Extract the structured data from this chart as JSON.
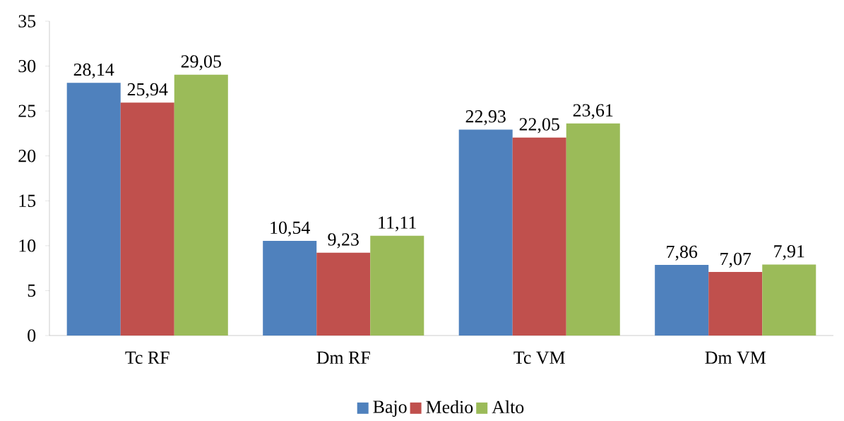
{
  "chart_data": {
    "type": "bar",
    "categories": [
      "Tc RF",
      "Dm RF",
      "Tc VM",
      "Dm VM"
    ],
    "series": [
      {
        "name": "Bajo",
        "color": "#4f81bd",
        "values": [
          28.14,
          10.54,
          22.93,
          7.86
        ],
        "value_labels": [
          "28,14",
          "10,54",
          "22,93",
          "7,86"
        ]
      },
      {
        "name": "Medio",
        "color": "#c0504d",
        "values": [
          25.94,
          9.23,
          22.05,
          7.07
        ],
        "value_labels": [
          "25,94",
          "9,23",
          "22,05",
          "7,07"
        ]
      },
      {
        "name": "Alto",
        "color": "#9bbb59",
        "values": [
          29.05,
          11.11,
          23.61,
          7.91
        ],
        "value_labels": [
          "29,05",
          "11,11",
          "23,61",
          "7,91"
        ]
      }
    ],
    "ylim": [
      0,
      35
    ],
    "yticks": [
      0,
      5,
      10,
      15,
      20,
      25,
      30,
      35
    ],
    "legend": "bottom"
  }
}
